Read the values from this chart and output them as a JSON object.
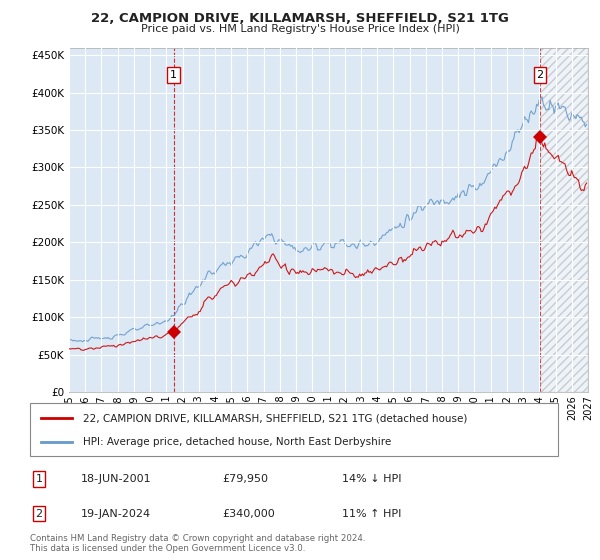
{
  "title": "22, CAMPION DRIVE, KILLAMARSH, SHEFFIELD, S21 1TG",
  "subtitle": "Price paid vs. HM Land Registry's House Price Index (HPI)",
  "legend_line1": "22, CAMPION DRIVE, KILLAMARSH, SHEFFIELD, S21 1TG (detached house)",
  "legend_line2": "HPI: Average price, detached house, North East Derbyshire",
  "footnote": "Contains HM Land Registry data © Crown copyright and database right 2024.\nThis data is licensed under the Open Government Licence v3.0.",
  "point1_label": "1",
  "point1_date": "18-JUN-2001",
  "point1_price": "£79,950",
  "point1_hpi": "14% ↓ HPI",
  "point2_label": "2",
  "point2_date": "19-JAN-2024",
  "point2_price": "£340,000",
  "point2_hpi": "11% ↑ HPI",
  "sale_color": "#cc0000",
  "hpi_color": "#6699cc",
  "point1_x": 2001.46,
  "point1_y": 79950,
  "point2_x": 2024.05,
  "point2_y": 340000,
  "ylim": [
    0,
    460000
  ],
  "xlim_start": 1995,
  "xlim_end": 2027,
  "yticks": [
    0,
    50000,
    100000,
    150000,
    200000,
    250000,
    300000,
    350000,
    400000,
    450000
  ],
  "xticks": [
    1995,
    1996,
    1997,
    1998,
    1999,
    2000,
    2001,
    2002,
    2003,
    2004,
    2005,
    2006,
    2007,
    2008,
    2009,
    2010,
    2011,
    2012,
    2013,
    2014,
    2015,
    2016,
    2017,
    2018,
    2019,
    2020,
    2021,
    2022,
    2023,
    2024,
    2025,
    2026,
    2027
  ],
  "background_color": "#ffffff",
  "chart_bg_color": "#dce9f5",
  "grid_color": "#ffffff"
}
